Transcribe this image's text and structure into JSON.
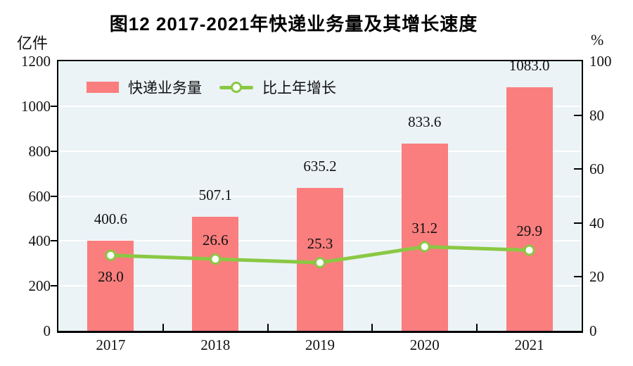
{
  "title": "图12  2017-2021年快递业务量及其增长速度",
  "left_axis": {
    "unit": "亿件",
    "ticks": [
      0,
      200,
      400,
      600,
      800,
      1000,
      1200
    ],
    "max": 1200
  },
  "right_axis": {
    "unit": "%",
    "ticks": [
      0,
      20,
      40,
      60,
      80,
      100
    ],
    "max": 100
  },
  "legend": [
    {
      "label": "快递业务量",
      "type": "bar"
    },
    {
      "label": "比上年增长",
      "type": "line"
    }
  ],
  "chart_data": {
    "type": "bar+line",
    "title": "图12  2017-2021年快递业务量及其增长速度",
    "categories": [
      "2017",
      "2018",
      "2019",
      "2020",
      "2021"
    ],
    "series": [
      {
        "name": "快递业务量",
        "type": "bar",
        "axis": "left",
        "values": [
          400.6,
          507.1,
          635.2,
          833.6,
          1083.0
        ],
        "labels": [
          "400.6",
          "507.1",
          "635.2",
          "833.6",
          "1083.0"
        ]
      },
      {
        "name": "比上年增长",
        "type": "line",
        "axis": "right",
        "values": [
          28.0,
          26.6,
          25.3,
          31.2,
          29.9
        ],
        "labels": [
          "28.0",
          "26.6",
          "25.3",
          "31.2",
          "29.9"
        ],
        "label_position": [
          "below",
          "above",
          "above",
          "above",
          "above"
        ]
      }
    ],
    "ylabel_left": "亿件",
    "ylabel_right": "%",
    "ylim_left": [
      0,
      1200
    ],
    "ylim_right": [
      0,
      100
    ],
    "grid": "horizontal",
    "legend_position": "top-left-inside"
  },
  "colors": {
    "bar": "#fa7e7e",
    "line": "#8ac843",
    "marker_fill": "#ffffff",
    "plot_bg": "#ebf3f6",
    "grid": "#ffffff",
    "axis": "#000000",
    "text": "#111111"
  }
}
